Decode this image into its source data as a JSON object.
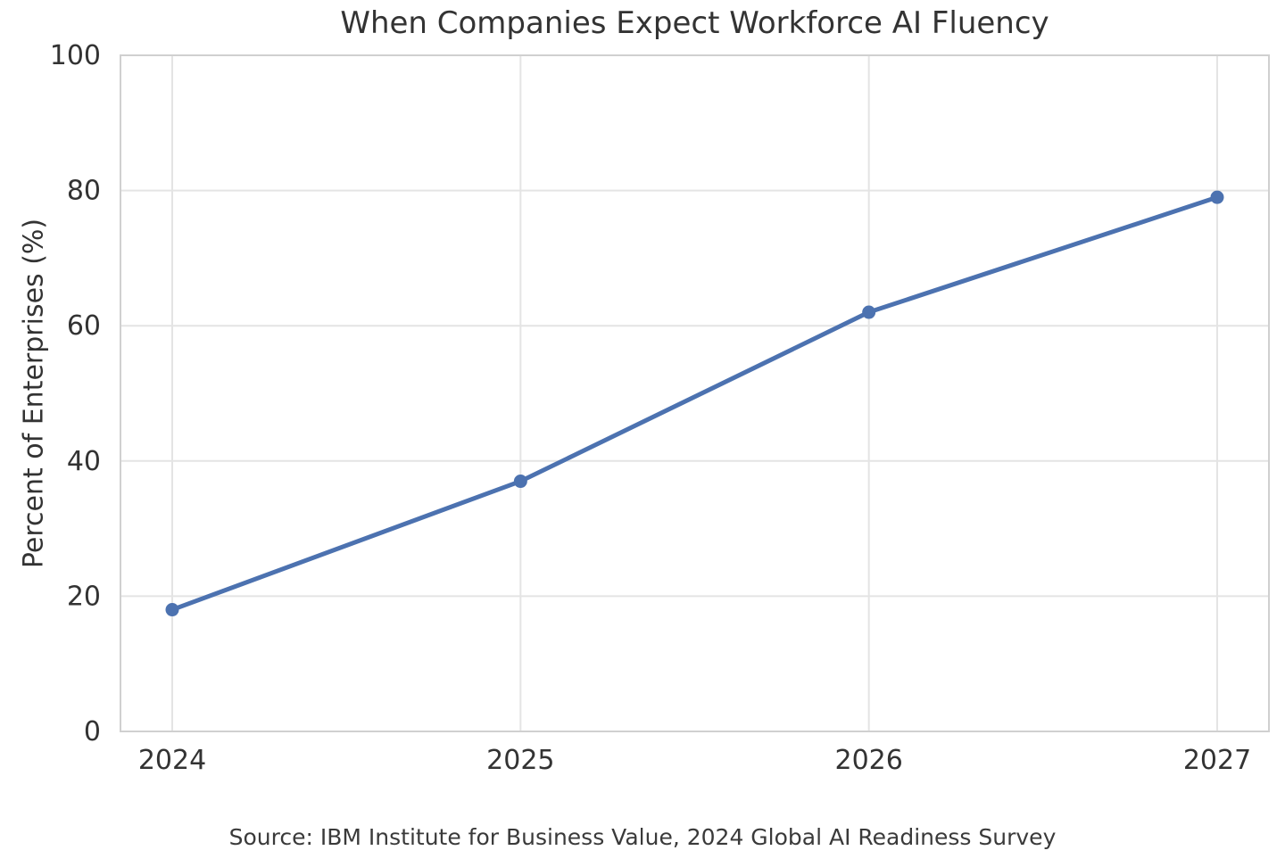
{
  "chart_data": {
    "type": "line",
    "title": "When Companies Expect Workforce AI Fluency",
    "ylabel": "Percent of Enterprises (%)",
    "xlabel": "",
    "categories": [
      "2024",
      "2025",
      "2026",
      "2027"
    ],
    "values": [
      18,
      37,
      62,
      79
    ],
    "yticks": [
      0,
      20,
      40,
      60,
      80,
      100
    ],
    "ylim": [
      0,
      100
    ],
    "grid": true,
    "legend_position": "none",
    "line_color": "#4C72B0",
    "marker_color": "#4C72B0",
    "grid_color": "#e4e4e4",
    "spine_color": "#d0d0d0",
    "text_color": "#333333",
    "source": "Source: IBM Institute for Business Value, 2024 Global AI Readiness Survey"
  }
}
